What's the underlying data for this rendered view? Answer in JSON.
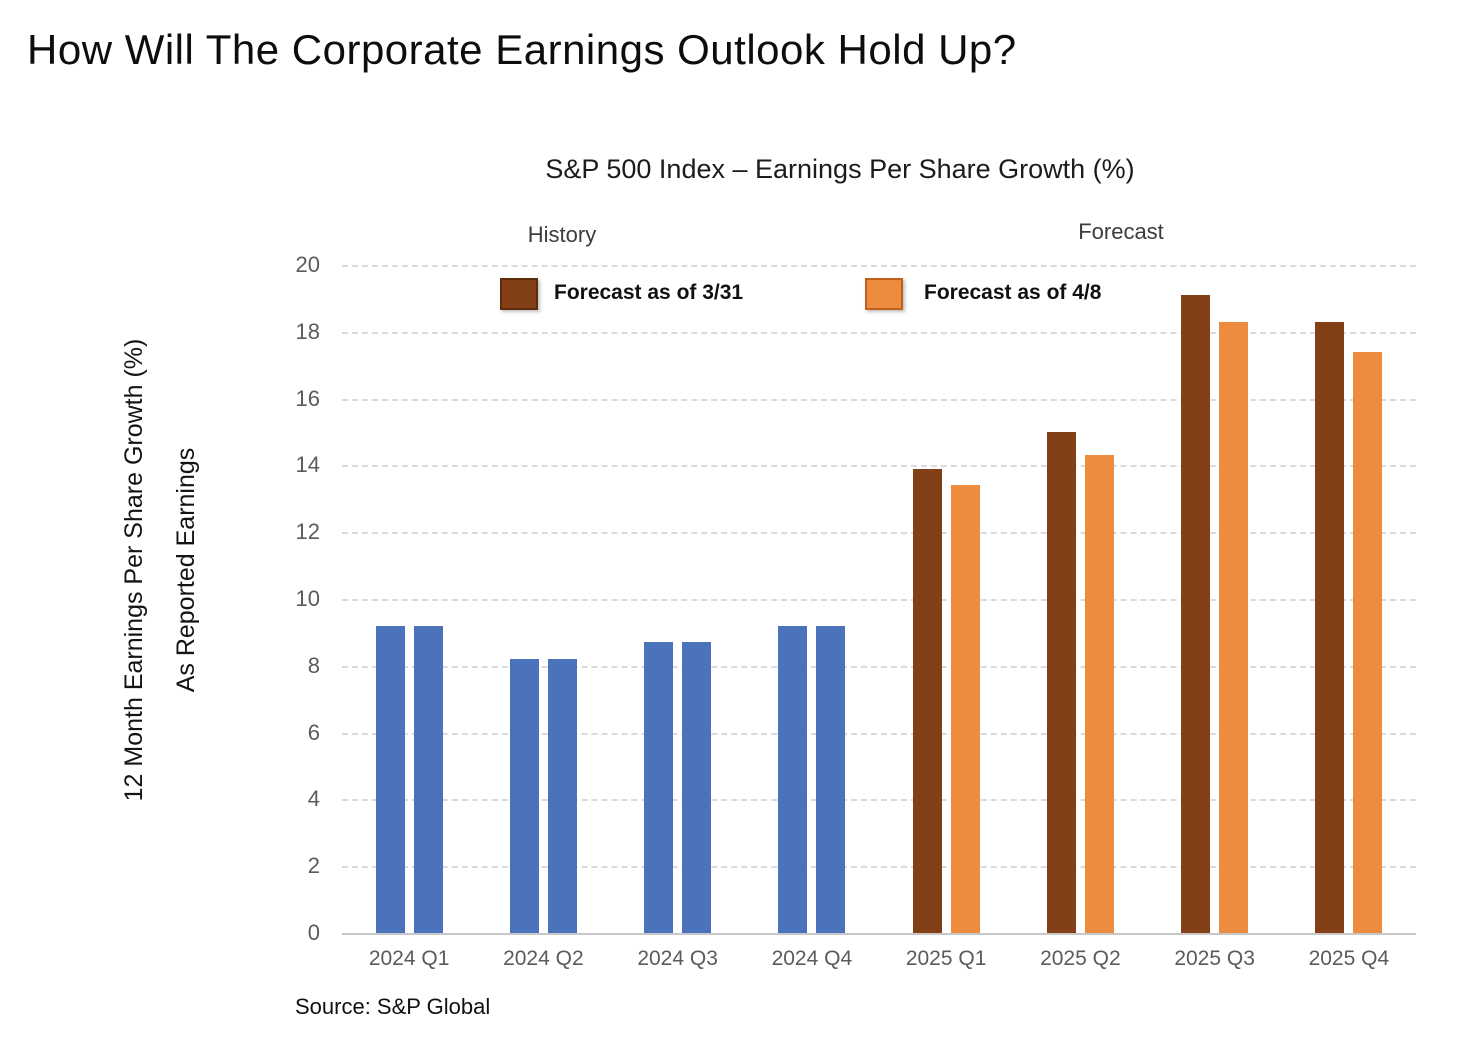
{
  "title": "How Will The Corporate Earnings Outlook Hold Up?",
  "source": "Source: S&P Global",
  "chart_data": {
    "type": "bar",
    "title": "S&P 500 Index – Earnings Per Share Growth (%)",
    "ylabel_lines": [
      "12 Month Earnings Per Share Growth (%)",
      "As Reported Earnings"
    ],
    "section_labels": [
      "History",
      "Forecast"
    ],
    "categories": [
      "2024 Q1",
      "2024 Q2",
      "2024 Q3",
      "2024 Q4",
      "2025 Q1",
      "2025 Q2",
      "2025 Q3",
      "2025 Q4"
    ],
    "series": [
      {
        "name": "Forecast as of 3/31",
        "values": [
          9.2,
          8.2,
          8.7,
          9.2,
          13.9,
          15.0,
          19.1,
          18.3
        ]
      },
      {
        "name": "Forecast as of 4/8",
        "values": [
          9.2,
          8.2,
          8.7,
          9.2,
          13.4,
          14.3,
          18.3,
          17.4
        ]
      }
    ],
    "history_group_count": 4,
    "ylim": [
      0,
      20
    ],
    "ytick_step": 2,
    "grid": "horizontal dashed",
    "legend_position": "top inside plot",
    "colors": {
      "history_bar": "#4a73bc",
      "forecast_bar_331": "#833f16",
      "forecast_bar_48": "#ed8c3e",
      "swatch_border_331": "#5e2c0b",
      "swatch_border_48": "#c0601c",
      "gridline": "#dadada",
      "axis_text": "#5b5b5b"
    }
  }
}
